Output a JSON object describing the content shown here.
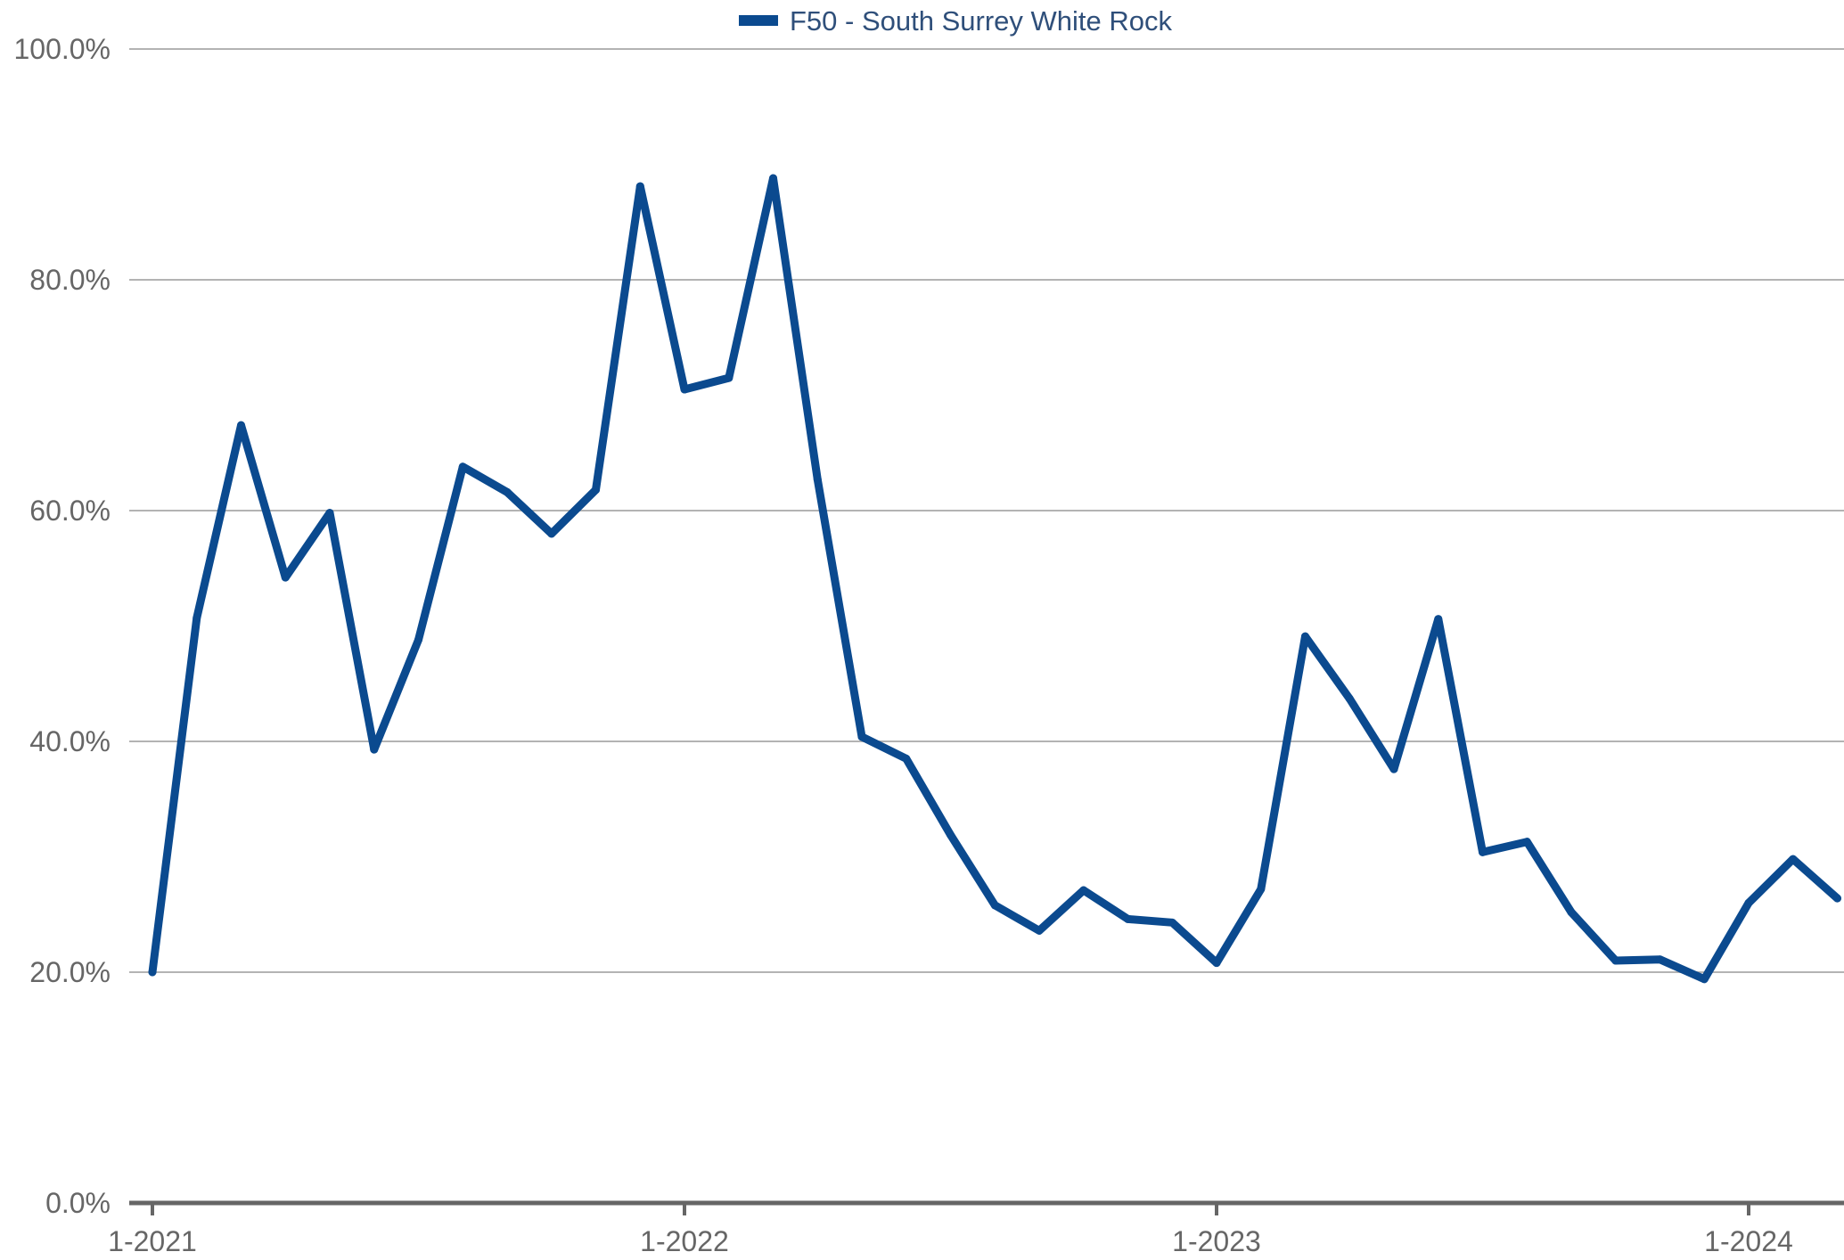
{
  "chart_data": {
    "type": "line",
    "title": "",
    "xlabel": "",
    "ylabel": "",
    "ylim": [
      0,
      100
    ],
    "y_ticks": [
      "0.0%",
      "20.0%",
      "40.0%",
      "60.0%",
      "80.0%",
      "100.0%"
    ],
    "y_tick_values": [
      0,
      20,
      40,
      60,
      80,
      100
    ],
    "x_ticks": [
      "1-2021",
      "1-2022",
      "1-2023",
      "1-2024"
    ],
    "x_tick_months": [
      "2021-01",
      "2022-01",
      "2023-01",
      "2024-01"
    ],
    "grid": true,
    "legend": "top-center",
    "colors": {
      "series": "#0b4a8f",
      "grid": "#b3b3b3",
      "axis": "#666666",
      "text": "#666666",
      "legend_text": "#2f4f7a"
    },
    "series": [
      {
        "name": "F50 - South Surrey White Rock",
        "x": [
          "2021-01",
          "2021-02",
          "2021-03",
          "2021-04",
          "2021-05",
          "2021-06",
          "2021-07",
          "2021-08",
          "2021-09",
          "2021-10",
          "2021-11",
          "2021-12",
          "2022-01",
          "2022-02",
          "2022-03",
          "2022-04",
          "2022-05",
          "2022-06",
          "2022-07",
          "2022-08",
          "2022-09",
          "2022-10",
          "2022-11",
          "2022-12",
          "2023-01",
          "2023-02",
          "2023-03",
          "2023-04",
          "2023-05",
          "2023-06",
          "2023-07",
          "2023-08",
          "2023-09",
          "2023-10",
          "2023-11",
          "2023-12",
          "2024-01",
          "2024-02",
          "2024-03"
        ],
        "values": [
          20.0,
          50.7,
          67.4,
          54.2,
          59.8,
          39.3,
          48.8,
          63.8,
          61.6,
          58.0,
          61.8,
          88.1,
          70.5,
          71.5,
          88.8,
          62.7,
          40.4,
          38.5,
          31.9,
          25.8,
          23.6,
          27.1,
          24.6,
          24.3,
          20.8,
          27.2,
          49.1,
          43.7,
          37.6,
          50.6,
          30.4,
          31.3,
          25.2,
          21.0,
          21.1,
          19.4,
          26.0,
          29.8,
          26.4
        ]
      }
    ]
  }
}
